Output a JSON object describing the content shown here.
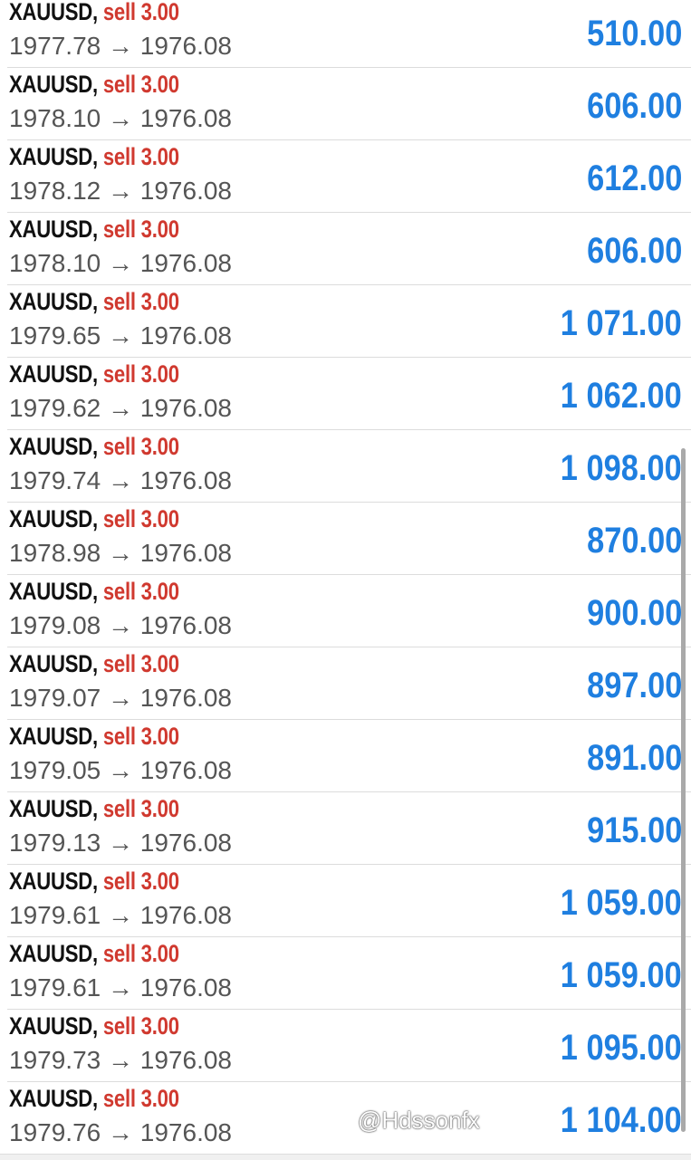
{
  "colors": {
    "side": "#d0392f",
    "profit": "#1f7fe0",
    "symbol": "#111111",
    "prices": "#555555"
  },
  "icons": {
    "arrow": "right-arrow"
  },
  "trades": [
    {
      "symbol": "XAUUSD,",
      "side": "sell 3.00",
      "open": "1977.78",
      "arrow": "→",
      "close": "1976.08",
      "profit": "510.00"
    },
    {
      "symbol": "XAUUSD,",
      "side": "sell 3.00",
      "open": "1978.10",
      "arrow": "→",
      "close": "1976.08",
      "profit": "606.00"
    },
    {
      "symbol": "XAUUSD,",
      "side": "sell 3.00",
      "open": "1978.12",
      "arrow": "→",
      "close": "1976.08",
      "profit": "612.00"
    },
    {
      "symbol": "XAUUSD,",
      "side": "sell 3.00",
      "open": "1978.10",
      "arrow": "→",
      "close": "1976.08",
      "profit": "606.00"
    },
    {
      "symbol": "XAUUSD,",
      "side": "sell 3.00",
      "open": "1979.65",
      "arrow": "→",
      "close": "1976.08",
      "profit": "1 071.00"
    },
    {
      "symbol": "XAUUSD,",
      "side": "sell 3.00",
      "open": "1979.62",
      "arrow": "→",
      "close": "1976.08",
      "profit": "1 062.00"
    },
    {
      "symbol": "XAUUSD,",
      "side": "sell 3.00",
      "open": "1979.74",
      "arrow": "→",
      "close": "1976.08",
      "profit": "1 098.00"
    },
    {
      "symbol": "XAUUSD,",
      "side": "sell 3.00",
      "open": "1978.98",
      "arrow": "→",
      "close": "1976.08",
      "profit": "870.00"
    },
    {
      "symbol": "XAUUSD,",
      "side": "sell 3.00",
      "open": "1979.08",
      "arrow": "→",
      "close": "1976.08",
      "profit": "900.00"
    },
    {
      "symbol": "XAUUSD,",
      "side": "sell 3.00",
      "open": "1979.07",
      "arrow": "→",
      "close": "1976.08",
      "profit": "897.00"
    },
    {
      "symbol": "XAUUSD,",
      "side": "sell 3.00",
      "open": "1979.05",
      "arrow": "→",
      "close": "1976.08",
      "profit": "891.00"
    },
    {
      "symbol": "XAUUSD,",
      "side": "sell 3.00",
      "open": "1979.13",
      "arrow": "→",
      "close": "1976.08",
      "profit": "915.00"
    },
    {
      "symbol": "XAUUSD,",
      "side": "sell 3.00",
      "open": "1979.61",
      "arrow": "→",
      "close": "1976.08",
      "profit": "1 059.00"
    },
    {
      "symbol": "XAUUSD,",
      "side": "sell 3.00",
      "open": "1979.61",
      "arrow": "→",
      "close": "1976.08",
      "profit": "1 059.00"
    },
    {
      "symbol": "XAUUSD,",
      "side": "sell 3.00",
      "open": "1979.73",
      "arrow": "→",
      "close": "1976.08",
      "profit": "1 095.00"
    },
    {
      "symbol": "XAUUSD,",
      "side": "sell 3.00",
      "open": "1979.76",
      "arrow": "→",
      "close": "1976.08",
      "profit": "1 104.00"
    }
  ],
  "watermark": "@Hdssonfx"
}
